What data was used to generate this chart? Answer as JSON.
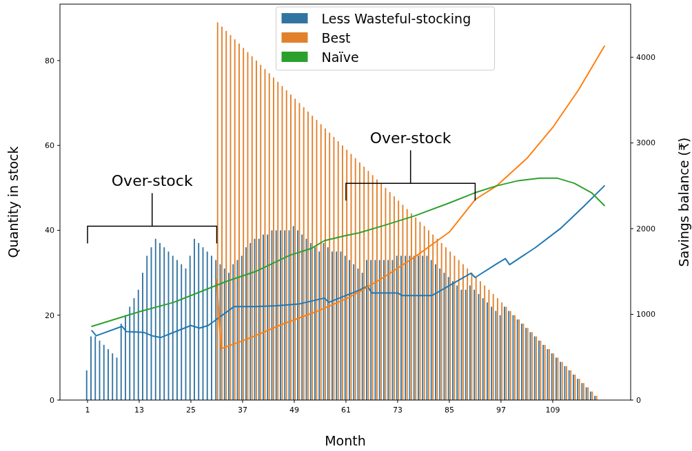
{
  "chart_data": {
    "type": "bar",
    "xlabel": "Month",
    "ylabel": "Quantity in stock",
    "y2label": "Savings balance (₹)",
    "x": [
      1,
      2,
      3,
      4,
      5,
      6,
      7,
      8,
      9,
      10,
      11,
      12,
      13,
      14,
      15,
      16,
      17,
      18,
      19,
      20,
      21,
      22,
      23,
      24,
      25,
      26,
      27,
      28,
      29,
      30,
      31,
      32,
      33,
      34,
      35,
      36,
      37,
      38,
      39,
      40,
      41,
      42,
      43,
      44,
      45,
      46,
      47,
      48,
      49,
      50,
      51,
      52,
      53,
      54,
      55,
      56,
      57,
      58,
      59,
      60,
      61,
      62,
      63,
      64,
      65,
      66,
      67,
      68,
      69,
      70,
      71,
      72,
      73,
      74,
      75,
      76,
      77,
      78,
      79,
      80,
      81,
      82,
      83,
      84,
      85,
      86,
      87,
      88,
      89,
      90,
      91,
      92,
      93,
      94,
      95,
      96,
      97,
      98,
      99,
      100,
      101,
      102,
      103,
      104,
      105,
      106,
      107,
      108,
      109,
      110,
      111,
      112,
      113,
      114,
      115,
      116,
      117,
      118,
      119
    ],
    "xlim": [
      -5.4,
      127.1
    ],
    "xticks": [
      1,
      13,
      25,
      37,
      49,
      61,
      73,
      85,
      97,
      109
    ],
    "ylim": [
      0,
      93.3
    ],
    "yticks": [
      0,
      20,
      40,
      60,
      80
    ],
    "y2lim": [
      0,
      4620
    ],
    "y2ticks": [
      0,
      1000,
      2000,
      3000,
      4000
    ],
    "legend": "top",
    "series": [
      {
        "name": "Less Wasteful-stocking",
        "color": "#3274a1",
        "values": [
          7,
          15,
          15,
          14,
          13,
          12,
          11,
          10,
          18,
          20,
          22,
          24,
          26,
          30,
          34,
          36,
          38,
          37,
          36,
          35,
          34,
          33,
          32,
          31,
          34,
          38,
          37,
          36,
          35,
          34,
          33,
          32,
          31,
          30,
          32,
          33,
          34,
          36,
          37,
          38,
          38,
          39,
          39,
          40,
          40,
          40,
          40,
          40,
          41,
          40,
          39,
          38,
          37,
          36,
          35,
          37,
          36,
          35,
          35,
          35,
          34,
          33,
          32,
          31,
          30,
          33,
          33,
          33,
          33,
          33,
          33,
          33,
          34,
          34,
          34,
          34,
          34,
          34,
          34,
          34,
          33,
          32,
          31,
          30,
          29,
          28,
          27,
          26,
          26,
          27,
          26,
          25,
          24,
          23,
          22,
          21,
          20,
          22,
          21,
          20,
          19,
          18,
          17,
          16,
          15,
          14,
          13,
          12,
          11,
          10,
          9,
          8,
          7,
          6,
          5,
          4,
          3,
          2,
          1
        ]
      },
      {
        "name": "Best",
        "color": "#e1812c",
        "values": [
          null,
          null,
          null,
          null,
          null,
          null,
          null,
          null,
          null,
          null,
          null,
          null,
          null,
          null,
          null,
          null,
          null,
          null,
          null,
          null,
          null,
          null,
          null,
          null,
          null,
          null,
          null,
          null,
          null,
          null,
          89,
          88,
          87,
          86,
          85,
          84,
          83,
          82,
          81,
          80,
          79,
          78,
          77,
          76,
          75,
          74,
          73,
          72,
          71,
          70,
          69,
          68,
          67,
          66,
          65,
          64,
          63,
          62,
          61,
          60,
          59,
          58,
          57,
          56,
          55,
          54,
          53,
          52,
          51,
          50,
          49,
          48,
          47,
          46,
          45,
          44,
          43,
          42,
          41,
          40,
          39,
          38,
          37,
          36,
          35,
          34,
          33,
          32,
          31,
          30,
          29,
          28,
          27,
          26,
          25,
          24,
          23,
          22,
          21,
          20,
          19,
          18,
          17,
          16,
          15,
          14,
          13,
          12,
          11,
          10,
          9,
          8,
          7,
          6,
          5,
          4,
          3,
          2,
          1
        ]
      },
      {
        "type": "line",
        "axis": "y2",
        "color": "#1f77b4",
        "x": [
          2,
          3,
          9,
          10,
          14,
          16,
          18,
          25,
          27,
          29,
          35,
          40,
          45,
          50,
          56,
          57,
          60,
          64,
          66,
          67,
          73,
          74,
          81,
          90,
          91,
          96,
          98,
          99,
          105,
          111,
          116,
          121
        ],
        "values": [
          810,
          750,
          860,
          800,
          790,
          750,
          730,
          870,
          840,
          870,
          1090,
          1090,
          1100,
          1120,
          1190,
          1140,
          1200,
          1280,
          1330,
          1250,
          1250,
          1220,
          1220,
          1480,
          1430,
          1590,
          1650,
          1580,
          1780,
          2010,
          2250,
          2500
        ]
      },
      {
        "type": "line",
        "axis": "y2",
        "color": "#ff7f0e",
        "x": [
          31,
          32,
          38,
          46,
          54,
          61,
          64,
          70,
          77,
          85,
          91,
          96,
          103,
          109,
          115,
          121
        ],
        "values": [
          1400,
          600,
          710,
          880,
          1030,
          1180,
          1260,
          1440,
          1670,
          1960,
          2340,
          2500,
          2820,
          3180,
          3620,
          4130
        ]
      },
      {
        "type": "line",
        "axis": "y2",
        "name": "Naïve",
        "color": "#2ca02c",
        "x": [
          2,
          13,
          21,
          29,
          33,
          40,
          48,
          53,
          56,
          61,
          64,
          70,
          77,
          85,
          91,
          96,
          101,
          106,
          110,
          114,
          118,
          121
        ],
        "values": [
          860,
          1030,
          1140,
          1300,
          1380,
          1500,
          1690,
          1770,
          1860,
          1920,
          1950,
          2040,
          2150,
          2300,
          2420,
          2500,
          2560,
          2590,
          2590,
          2530,
          2420,
          2270
        ]
      }
    ],
    "annotations": [
      "Over-stock",
      "Over-stock"
    ]
  }
}
